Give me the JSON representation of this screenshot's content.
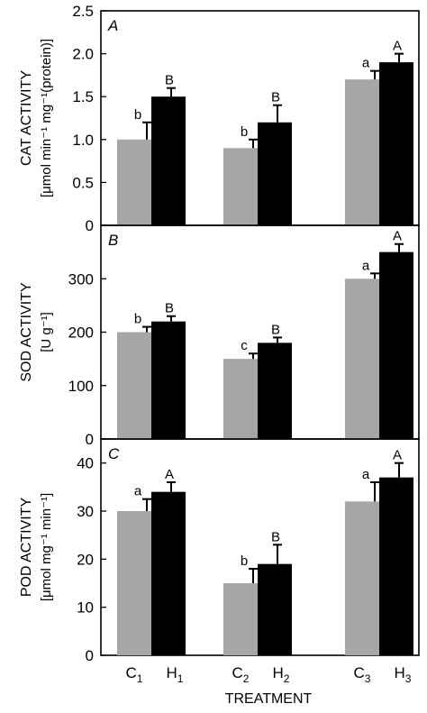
{
  "chart_data": [
    {
      "type": "bar",
      "panel_label": "A",
      "ylabel_line1": "CAT ACTIVITY",
      "ylabel_line2": "[μmol min⁻¹ mg⁻¹(protein)]",
      "ylim": [
        0,
        2.5
      ],
      "yticks": [
        0,
        0.5,
        1.0,
        1.5,
        2.0,
        2.5
      ],
      "ytick_labels": [
        "0",
        "0.5",
        "1.0",
        "1.5",
        "2.0",
        "2.5"
      ],
      "series": [
        {
          "name": "C",
          "color": "#a6a6a6",
          "values": [
            1.0,
            0.9,
            1.7
          ],
          "errors": [
            0.2,
            0.1,
            0.1
          ],
          "letters": [
            "b",
            "b",
            "a"
          ]
        },
        {
          "name": "H",
          "color": "#000000",
          "values": [
            1.5,
            1.2,
            1.9
          ],
          "errors": [
            0.1,
            0.2,
            0.1
          ],
          "letters": [
            "B",
            "B",
            "A"
          ]
        }
      ]
    },
    {
      "type": "bar",
      "panel_label": "B",
      "ylabel_line1": "SOD ACTIVITY",
      "ylabel_line2": "[U g⁻¹]",
      "ylim": [
        0,
        400
      ],
      "yticks": [
        0,
        100,
        200,
        300
      ],
      "ytick_labels": [
        "0",
        "100",
        "200",
        "300"
      ],
      "series": [
        {
          "name": "C",
          "color": "#a6a6a6",
          "values": [
            200,
            150,
            300
          ],
          "errors": [
            10,
            10,
            10
          ],
          "letters": [
            "b",
            "c",
            "a"
          ]
        },
        {
          "name": "H",
          "color": "#000000",
          "values": [
            220,
            180,
            350
          ],
          "errors": [
            10,
            10,
            15
          ],
          "letters": [
            "B",
            "B",
            "A"
          ]
        }
      ]
    },
    {
      "type": "bar",
      "panel_label": "C",
      "ylabel_line1": "POD ACTIVITY",
      "ylabel_line2": "[μmol mg⁻¹ min⁻¹]",
      "ylim": [
        0,
        45
      ],
      "yticks": [
        0,
        10,
        20,
        30,
        40
      ],
      "ytick_labels": [
        "0",
        "10",
        "20",
        "30",
        "40"
      ],
      "series": [
        {
          "name": "C",
          "color": "#a6a6a6",
          "values": [
            30,
            15,
            32
          ],
          "errors": [
            2.5,
            3,
            4
          ],
          "letters": [
            "a",
            "b",
            "a"
          ]
        },
        {
          "name": "H",
          "color": "#000000",
          "values": [
            34,
            19,
            37
          ],
          "errors": [
            2,
            4,
            3
          ],
          "letters": [
            "A",
            "B",
            "A"
          ]
        }
      ]
    }
  ],
  "x_axis": {
    "title": "TREATMENT",
    "ticks": [
      {
        "main": "C",
        "sub": "1"
      },
      {
        "main": "H",
        "sub": "1"
      },
      {
        "main": "C",
        "sub": "2"
      },
      {
        "main": "H",
        "sub": "2"
      },
      {
        "main": "C",
        "sub": "3"
      },
      {
        "main": "H",
        "sub": "3"
      }
    ]
  }
}
